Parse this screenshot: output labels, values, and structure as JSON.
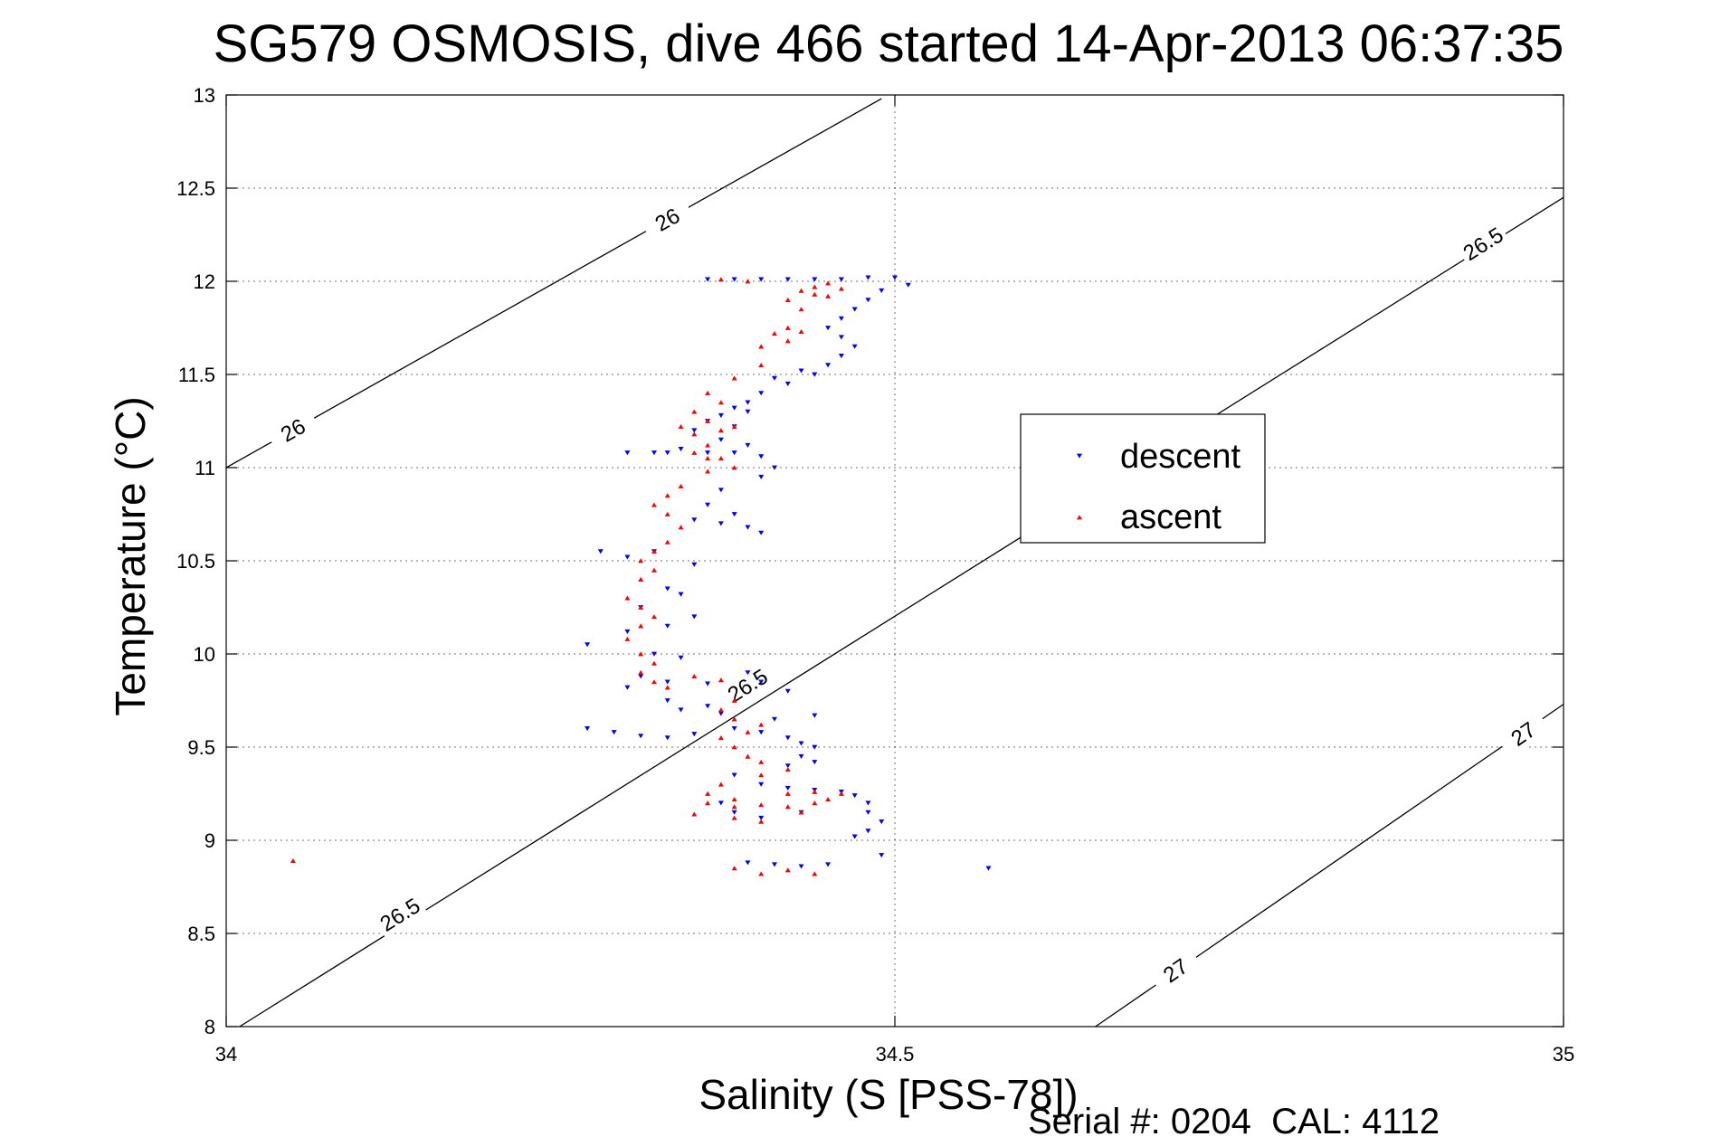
{
  "chart_data": {
    "type": "scatter",
    "title": "SG579 OSMOSIS, dive 466 started 14-Apr-2013 06:37:35",
    "xlabel": "Salinity (S [PSS-78])",
    "ylabel": "Temperature (°C)",
    "xlim": [
      34,
      35
    ],
    "ylim": [
      8,
      13
    ],
    "x_ticks": [
      34,
      34.5,
      35
    ],
    "y_ticks": [
      8,
      8.5,
      9,
      9.5,
      10,
      10.5,
      11,
      11.5,
      12,
      12.5,
      13
    ],
    "grid": true,
    "legend": {
      "position": "right-center",
      "entries": [
        "descent",
        "ascent"
      ]
    },
    "footer": "Serial #: 0204  CAL: 4112",
    "density_contours": [
      {
        "label": "26",
        "points": [
          [
            34,
            11.0
          ],
          [
            34.49,
            12.98
          ]
        ],
        "label_positions": [
          [
            34.05,
            11.2
          ],
          [
            34.33,
            12.33
          ]
        ]
      },
      {
        "label": "26.5",
        "points": [
          [
            34.01,
            8.0
          ],
          [
            35,
            12.45
          ]
        ],
        "label_positions": [
          [
            34.13,
            8.6
          ],
          [
            34.39,
            9.83
          ],
          [
            34.94,
            12.2
          ]
        ]
      },
      {
        "label": "27",
        "points": [
          [
            34.65,
            8.0
          ],
          [
            35,
            9.73
          ]
        ],
        "label_positions": [
          [
            34.71,
            8.3
          ],
          [
            34.97,
            9.57
          ]
        ]
      }
    ],
    "series": [
      {
        "name": "descent",
        "marker": "triangle-down",
        "color": "#0000ff",
        "points": [
          [
            34.36,
            12.01
          ],
          [
            34.38,
            12.01
          ],
          [
            34.4,
            12.01
          ],
          [
            34.42,
            12.01
          ],
          [
            34.44,
            12.01
          ],
          [
            34.46,
            12.01
          ],
          [
            34.48,
            12.02
          ],
          [
            34.5,
            12.02
          ],
          [
            34.51,
            11.98
          ],
          [
            34.49,
            11.95
          ],
          [
            34.48,
            11.9
          ],
          [
            34.47,
            11.85
          ],
          [
            34.46,
            11.8
          ],
          [
            34.45,
            11.75
          ],
          [
            34.46,
            11.7
          ],
          [
            34.47,
            11.65
          ],
          [
            34.46,
            11.6
          ],
          [
            34.45,
            11.55
          ],
          [
            34.44,
            11.5
          ],
          [
            34.42,
            11.45
          ],
          [
            34.4,
            11.4
          ],
          [
            34.39,
            11.35
          ],
          [
            34.41,
            11.48
          ],
          [
            34.43,
            11.52
          ],
          [
            34.37,
            11.28
          ],
          [
            34.39,
            11.3
          ],
          [
            34.38,
            11.32
          ],
          [
            34.36,
            11.25
          ],
          [
            34.38,
            11.22
          ],
          [
            34.35,
            11.2
          ],
          [
            34.37,
            11.15
          ],
          [
            34.39,
            11.12
          ],
          [
            34.34,
            11.1
          ],
          [
            34.36,
            11.08
          ],
          [
            34.32,
            11.08
          ],
          [
            34.33,
            11.08
          ],
          [
            34.3,
            11.08
          ],
          [
            34.38,
            11.08
          ],
          [
            34.4,
            11.06
          ],
          [
            34.41,
            11.0
          ],
          [
            34.4,
            10.95
          ],
          [
            34.37,
            10.88
          ],
          [
            34.36,
            10.8
          ],
          [
            34.38,
            10.75
          ],
          [
            34.35,
            10.72
          ],
          [
            34.39,
            10.68
          ],
          [
            34.4,
            10.65
          ],
          [
            34.37,
            10.7
          ],
          [
            34.32,
            10.55
          ],
          [
            34.3,
            10.52
          ],
          [
            34.28,
            10.55
          ],
          [
            34.35,
            10.48
          ],
          [
            34.33,
            10.35
          ],
          [
            34.34,
            10.32
          ],
          [
            34.31,
            10.25
          ],
          [
            34.35,
            10.2
          ],
          [
            34.33,
            10.15
          ],
          [
            34.3,
            10.12
          ],
          [
            34.27,
            10.05
          ],
          [
            34.32,
            10.0
          ],
          [
            34.34,
            9.98
          ],
          [
            34.31,
            9.88
          ],
          [
            34.33,
            9.85
          ],
          [
            34.3,
            9.82
          ],
          [
            34.36,
            9.84
          ],
          [
            34.39,
            9.9
          ],
          [
            34.4,
            9.85
          ],
          [
            34.42,
            9.8
          ],
          [
            34.33,
            9.75
          ],
          [
            34.36,
            9.72
          ],
          [
            34.34,
            9.7
          ],
          [
            34.37,
            9.68
          ],
          [
            34.41,
            9.65
          ],
          [
            34.44,
            9.67
          ],
          [
            34.29,
            9.58
          ],
          [
            34.31,
            9.56
          ],
          [
            34.33,
            9.55
          ],
          [
            34.35,
            9.57
          ],
          [
            34.38,
            9.6
          ],
          [
            34.4,
            9.58
          ],
          [
            34.42,
            9.55
          ],
          [
            34.43,
            9.52
          ],
          [
            34.44,
            9.5
          ],
          [
            34.43,
            9.45
          ],
          [
            34.44,
            9.42
          ],
          [
            34.42,
            9.4
          ],
          [
            34.38,
            9.35
          ],
          [
            34.4,
            9.3
          ],
          [
            34.42,
            9.28
          ],
          [
            34.44,
            9.27
          ],
          [
            34.46,
            9.26
          ],
          [
            34.47,
            9.24
          ],
          [
            34.48,
            9.2
          ],
          [
            34.48,
            9.15
          ],
          [
            34.49,
            9.1
          ],
          [
            34.48,
            9.05
          ],
          [
            34.47,
            9.02
          ],
          [
            34.49,
            8.92
          ],
          [
            34.43,
            9.15
          ],
          [
            34.4,
            9.12
          ],
          [
            34.38,
            9.15
          ],
          [
            34.37,
            9.2
          ],
          [
            34.39,
            8.88
          ],
          [
            34.41,
            8.87
          ],
          [
            34.43,
            8.86
          ],
          [
            34.45,
            8.87
          ],
          [
            34.57,
            8.85
          ],
          [
            34.27,
            9.6
          ]
        ]
      },
      {
        "name": "ascent",
        "marker": "triangle-up",
        "color": "#ff0000",
        "points": [
          [
            34.37,
            12.01
          ],
          [
            34.39,
            12.0
          ],
          [
            34.45,
            11.99
          ],
          [
            34.44,
            11.97
          ],
          [
            34.43,
            11.95
          ],
          [
            34.44,
            11.93
          ],
          [
            34.45,
            11.92
          ],
          [
            34.46,
            11.96
          ],
          [
            34.42,
            11.9
          ],
          [
            34.43,
            11.85
          ],
          [
            34.42,
            11.75
          ],
          [
            34.43,
            11.73
          ],
          [
            34.41,
            11.72
          ],
          [
            34.42,
            11.68
          ],
          [
            34.4,
            11.65
          ],
          [
            34.4,
            11.55
          ],
          [
            34.38,
            11.48
          ],
          [
            34.36,
            11.4
          ],
          [
            34.37,
            11.35
          ],
          [
            34.35,
            11.3
          ],
          [
            34.36,
            11.25
          ],
          [
            34.34,
            11.22
          ],
          [
            34.35,
            11.18
          ],
          [
            34.37,
            11.2
          ],
          [
            34.38,
            11.22
          ],
          [
            34.36,
            11.12
          ],
          [
            34.35,
            11.08
          ],
          [
            34.37,
            11.05
          ],
          [
            34.38,
            11.0
          ],
          [
            34.36,
            10.98
          ],
          [
            34.34,
            10.9
          ],
          [
            34.33,
            10.85
          ],
          [
            34.32,
            10.8
          ],
          [
            34.33,
            10.75
          ],
          [
            34.34,
            10.68
          ],
          [
            34.33,
            10.6
          ],
          [
            34.32,
            10.55
          ],
          [
            34.31,
            10.5
          ],
          [
            34.32,
            10.45
          ],
          [
            34.31,
            10.4
          ],
          [
            34.3,
            10.3
          ],
          [
            34.31,
            10.25
          ],
          [
            34.32,
            10.2
          ],
          [
            34.31,
            10.15
          ],
          [
            34.3,
            10.08
          ],
          [
            34.31,
            10.0
          ],
          [
            34.32,
            9.95
          ],
          [
            34.31,
            9.9
          ],
          [
            34.32,
            9.85
          ],
          [
            34.33,
            9.82
          ],
          [
            34.35,
            9.88
          ],
          [
            34.37,
            9.86
          ],
          [
            34.38,
            9.75
          ],
          [
            34.37,
            9.7
          ],
          [
            34.38,
            9.65
          ],
          [
            34.4,
            9.62
          ],
          [
            34.39,
            9.58
          ],
          [
            34.37,
            9.55
          ],
          [
            34.38,
            9.5
          ],
          [
            34.39,
            9.45
          ],
          [
            34.4,
            9.42
          ],
          [
            34.42,
            9.38
          ],
          [
            34.4,
            9.35
          ],
          [
            34.37,
            9.3
          ],
          [
            34.36,
            9.25
          ],
          [
            34.38,
            9.22
          ],
          [
            34.42,
            9.25
          ],
          [
            34.44,
            9.26
          ],
          [
            34.46,
            9.25
          ],
          [
            34.45,
            9.22
          ],
          [
            34.44,
            9.2
          ],
          [
            34.42,
            9.18
          ],
          [
            34.4,
            9.19
          ],
          [
            34.38,
            9.18
          ],
          [
            34.36,
            9.2
          ],
          [
            34.35,
            9.14
          ],
          [
            34.38,
            9.12
          ],
          [
            34.4,
            9.1
          ],
          [
            34.43,
            9.15
          ],
          [
            34.38,
            8.85
          ],
          [
            34.4,
            8.82
          ],
          [
            34.42,
            8.84
          ],
          [
            34.44,
            8.82
          ],
          [
            34.05,
            8.89
          ],
          [
            34.36,
            11.05
          ]
        ]
      }
    ]
  }
}
